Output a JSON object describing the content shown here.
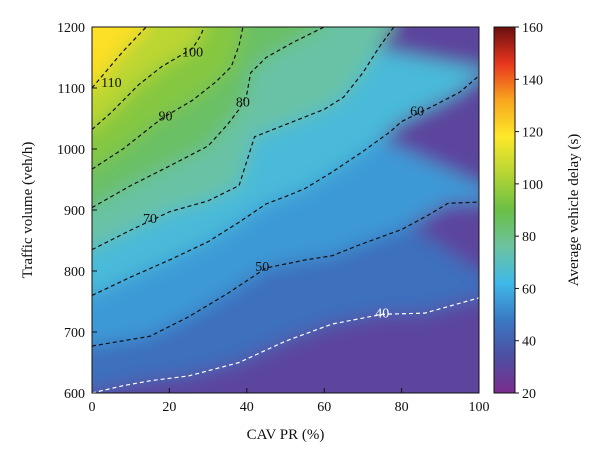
{
  "chart_data": {
    "type": "heatmap",
    "xlabel": "CAV PR (%)",
    "ylabel": "Traffic volume (veh/h)",
    "colorbar_label": "Average vehicle delay (s)",
    "xlim": [
      0,
      100
    ],
    "ylim": [
      600,
      1200
    ],
    "clim": [
      20,
      160
    ],
    "xticks": [
      "0",
      "20",
      "40",
      "60",
      "80",
      "100"
    ],
    "yticks": [
      "600",
      "700",
      "800",
      "900",
      "1000",
      "1100",
      "1200"
    ],
    "cticks": [
      "20",
      "40",
      "60",
      "80",
      "100",
      "120",
      "140",
      "160"
    ],
    "colormap": [
      "#7b2d8e",
      "#4e4fa3",
      "#3a79c4",
      "#3fb8e8",
      "#6cc3a0",
      "#6abf45",
      "#b6d534",
      "#fde92a",
      "#f8a51f",
      "#e8361e",
      "#6b0f0f"
    ],
    "contour_lines": [
      {
        "level": 40,
        "label": "40",
        "color": "#ffffff",
        "label_at": [
          75,
          732
        ],
        "points": [
          [
            0,
            600
          ],
          [
            8,
            612
          ],
          [
            15,
            620
          ],
          [
            25,
            628
          ],
          [
            38,
            650
          ],
          [
            50,
            685
          ],
          [
            62,
            713
          ],
          [
            75,
            729
          ],
          [
            86,
            731
          ],
          [
            100,
            756
          ]
        ]
      },
      {
        "level": 50,
        "label": "50",
        "color": "#111111",
        "label_at": [
          44,
          808
        ],
        "points": [
          [
            0,
            677
          ],
          [
            15,
            693
          ],
          [
            25,
            725
          ],
          [
            35,
            763
          ],
          [
            45,
            805
          ],
          [
            55,
            818
          ],
          [
            62,
            825
          ],
          [
            70,
            845
          ],
          [
            80,
            868
          ],
          [
            87,
            892
          ],
          [
            92,
            911
          ],
          [
            100,
            913
          ]
        ]
      },
      {
        "level": 60,
        "label": "60",
        "color": "#111111",
        "label_at": [
          84,
          1063
        ],
        "points": [
          [
            0,
            760
          ],
          [
            10,
            790
          ],
          [
            20,
            818
          ],
          [
            30,
            848
          ],
          [
            38,
            880
          ],
          [
            45,
            910
          ],
          [
            50,
            922
          ],
          [
            55,
            935
          ],
          [
            62,
            962
          ],
          [
            70,
            996
          ],
          [
            77,
            1028
          ],
          [
            80,
            1045
          ],
          [
            88,
            1070
          ],
          [
            95,
            1093
          ],
          [
            100,
            1120
          ]
        ]
      },
      {
        "level": 70,
        "label": "70",
        "color": "#111111",
        "label_at": [
          15,
          887
        ],
        "points": [
          [
            0,
            835
          ],
          [
            10,
            867
          ],
          [
            20,
            897
          ],
          [
            30,
            915
          ],
          [
            38,
            940
          ],
          [
            42,
            1020
          ],
          [
            50,
            1040
          ],
          [
            60,
            1065
          ],
          [
            65,
            1085
          ],
          [
            70,
            1125
          ],
          [
            74,
            1165
          ],
          [
            78,
            1200
          ]
        ]
      },
      {
        "level": 80,
        "label": "80",
        "color": "#111111",
        "label_at": [
          39,
          1078
        ],
        "points": [
          [
            0,
            904
          ],
          [
            10,
            940
          ],
          [
            20,
            972
          ],
          [
            30,
            1005
          ],
          [
            35,
            1040
          ],
          [
            38,
            1065
          ],
          [
            40,
            1090
          ],
          [
            41,
            1125
          ],
          [
            45,
            1150
          ],
          [
            52,
            1175
          ],
          [
            60,
            1200
          ]
        ]
      },
      {
        "level": 90,
        "label": "90",
        "color": "#111111",
        "label_at": [
          19,
          1055
        ],
        "points": [
          [
            0,
            967
          ],
          [
            8,
            1000
          ],
          [
            18,
            1050
          ],
          [
            26,
            1080
          ],
          [
            32,
            1110
          ],
          [
            36,
            1135
          ],
          [
            38,
            1170
          ],
          [
            39,
            1200
          ]
        ]
      },
      {
        "level": 100,
        "label": "100",
        "color": "#111111",
        "label_at": [
          26,
          1160
        ],
        "points": [
          [
            0,
            1032
          ],
          [
            5,
            1060
          ],
          [
            12,
            1105
          ],
          [
            18,
            1135
          ],
          [
            22,
            1150
          ],
          [
            26,
            1165
          ],
          [
            28,
            1185
          ],
          [
            29,
            1200
          ]
        ]
      },
      {
        "level": 110,
        "label": "110",
        "color": "#111111",
        "label_at": [
          5,
          1110
        ],
        "points": [
          [
            0,
            1100
          ],
          [
            4,
            1130
          ],
          [
            8,
            1160
          ],
          [
            11,
            1180
          ],
          [
            14,
            1200
          ]
        ]
      }
    ]
  }
}
